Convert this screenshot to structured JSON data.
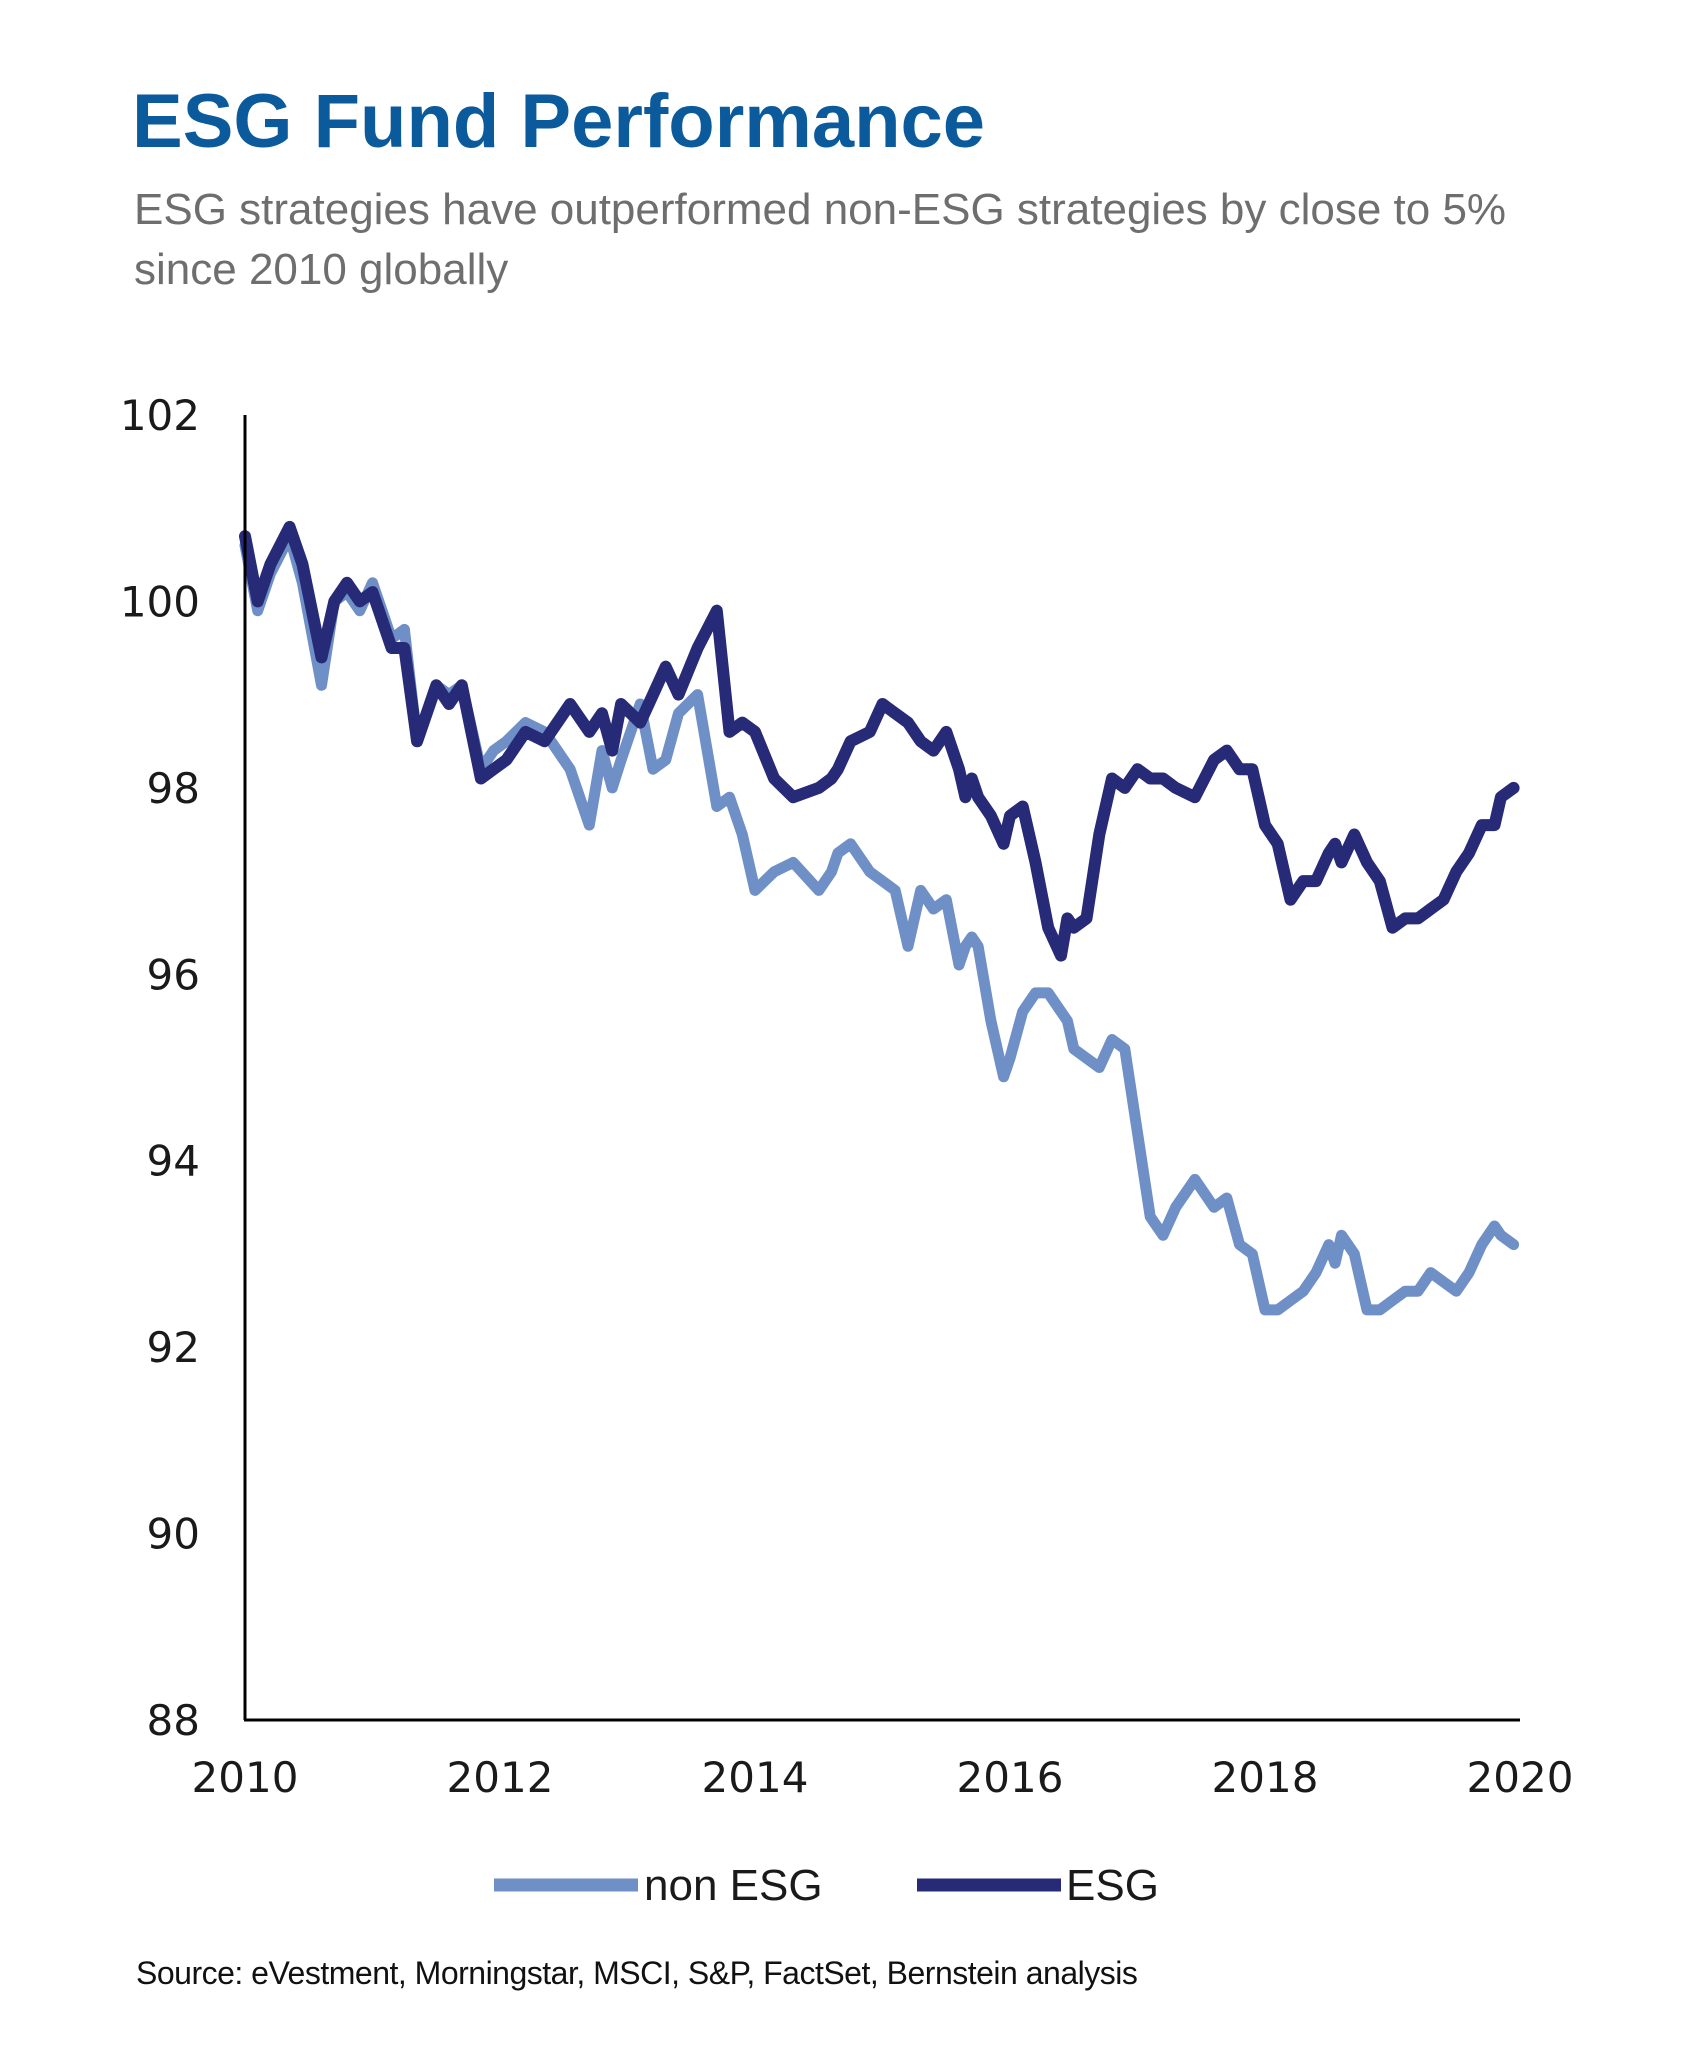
{
  "title": "ESG Fund Performance",
  "subtitle": "ESG strategies have outperformed non-ESG strategies by close to 5% since 2010 globally",
  "source": "Source: eVestment, Morningstar, MSCI, S&P, FactSet, Bernstein analysis",
  "colors": {
    "title": "#0b5a9c",
    "non_esg": "#6f8fc7",
    "esg": "#262a77"
  },
  "chart_data": {
    "type": "line",
    "xlim": [
      2010,
      2020
    ],
    "ylim": [
      88,
      102
    ],
    "x_ticks": [
      "2010",
      "2012",
      "2014",
      "2016",
      "2018",
      "2020"
    ],
    "y_ticks": [
      "102",
      "100",
      "98",
      "96",
      "94",
      "92",
      "90",
      "88"
    ],
    "grid": false,
    "legend_placement": "bottom-center",
    "series": [
      {
        "name": "non ESG",
        "x": [
          2010.0,
          2010.1,
          2010.2,
          2010.35,
          2010.45,
          2010.6,
          2010.7,
          2010.8,
          2010.9,
          2011.0,
          2011.15,
          2011.25,
          2011.35,
          2011.5,
          2011.6,
          2011.7,
          2011.85,
          2011.95,
          2012.05,
          2012.2,
          2012.35,
          2012.55,
          2012.7,
          2012.8,
          2012.88,
          2012.95,
          2013.1,
          2013.2,
          2013.3,
          2013.4,
          2013.55,
          2013.7,
          2013.8,
          2013.9,
          2014.0,
          2014.15,
          2014.3,
          2014.5,
          2014.6,
          2014.65,
          2014.75,
          2014.9,
          2015.0,
          2015.1,
          2015.2,
          2015.3,
          2015.4,
          2015.5,
          2015.6,
          2015.65,
          2015.7,
          2015.75,
          2015.85,
          2015.95,
          2016.0,
          2016.1,
          2016.2,
          2016.3,
          2016.4,
          2016.45,
          2016.5,
          2016.6,
          2016.7,
          2016.8,
          2016.9,
          2017.0,
          2017.1,
          2017.2,
          2017.3,
          2017.45,
          2017.6,
          2017.7,
          2017.8,
          2017.9,
          2018.0,
          2018.1,
          2018.2,
          2018.3,
          2018.4,
          2018.5,
          2018.55,
          2018.6,
          2018.7,
          2018.8,
          2018.9,
          2019.0,
          2019.1,
          2019.2,
          2019.3,
          2019.4,
          2019.5,
          2019.6,
          2019.7,
          2019.8,
          2019.85,
          2019.95
        ],
        "values": [
          100.6,
          99.9,
          100.3,
          100.7,
          100.2,
          99.1,
          100.0,
          100.1,
          99.9,
          100.2,
          99.6,
          99.7,
          98.5,
          99.1,
          99.0,
          99.1,
          98.2,
          98.4,
          98.5,
          98.7,
          98.6,
          98.2,
          97.6,
          98.4,
          98.0,
          98.3,
          98.9,
          98.2,
          98.3,
          98.8,
          99.0,
          97.8,
          97.9,
          97.5,
          96.9,
          97.1,
          97.2,
          96.9,
          97.1,
          97.3,
          97.4,
          97.1,
          97.0,
          96.9,
          96.3,
          96.9,
          96.7,
          96.8,
          96.1,
          96.3,
          96.4,
          96.3,
          95.5,
          94.9,
          95.1,
          95.6,
          95.8,
          95.8,
          95.6,
          95.5,
          95.2,
          95.1,
          95.0,
          95.3,
          95.2,
          94.3,
          93.4,
          93.2,
          93.5,
          93.8,
          93.5,
          93.6,
          93.1,
          93.0,
          92.4,
          92.4,
          92.5,
          92.6,
          92.8,
          93.1,
          92.9,
          93.2,
          93.0,
          92.4,
          92.4,
          92.5,
          92.6,
          92.6,
          92.8,
          92.7,
          92.6,
          92.8,
          93.1,
          93.3,
          93.2,
          93.1
        ]
      },
      {
        "name": "ESG",
        "x": [
          2010.0,
          2010.1,
          2010.2,
          2010.35,
          2010.45,
          2010.6,
          2010.7,
          2010.8,
          2010.9,
          2011.0,
          2011.15,
          2011.25,
          2011.35,
          2011.5,
          2011.6,
          2011.7,
          2011.85,
          2011.95,
          2012.05,
          2012.2,
          2012.35,
          2012.55,
          2012.7,
          2012.8,
          2012.88,
          2012.95,
          2013.1,
          2013.2,
          2013.3,
          2013.4,
          2013.55,
          2013.7,
          2013.8,
          2013.9,
          2014.0,
          2014.15,
          2014.3,
          2014.5,
          2014.6,
          2014.65,
          2014.75,
          2014.9,
          2015.0,
          2015.1,
          2015.2,
          2015.3,
          2015.4,
          2015.5,
          2015.6,
          2015.65,
          2015.7,
          2015.75,
          2015.85,
          2015.95,
          2016.0,
          2016.1,
          2016.2,
          2016.3,
          2016.4,
          2016.45,
          2016.5,
          2016.6,
          2016.7,
          2016.8,
          2016.9,
          2017.0,
          2017.1,
          2017.2,
          2017.3,
          2017.45,
          2017.6,
          2017.7,
          2017.8,
          2017.9,
          2018.0,
          2018.1,
          2018.2,
          2018.3,
          2018.4,
          2018.5,
          2018.55,
          2018.6,
          2018.7,
          2018.8,
          2018.9,
          2019.0,
          2019.1,
          2019.2,
          2019.3,
          2019.4,
          2019.5,
          2019.6,
          2019.7,
          2019.8,
          2019.85,
          2019.95
        ],
        "values": [
          100.7,
          100.0,
          100.4,
          100.8,
          100.4,
          99.4,
          100.0,
          100.2,
          100.0,
          100.1,
          99.5,
          99.5,
          98.5,
          99.1,
          98.9,
          99.1,
          98.1,
          98.2,
          98.3,
          98.6,
          98.5,
          98.9,
          98.6,
          98.8,
          98.4,
          98.9,
          98.7,
          99.0,
          99.3,
          99.0,
          99.5,
          99.9,
          98.6,
          98.7,
          98.6,
          98.1,
          97.9,
          98.0,
          98.1,
          98.2,
          98.5,
          98.6,
          98.9,
          98.8,
          98.7,
          98.5,
          98.4,
          98.6,
          98.2,
          97.9,
          98.1,
          97.9,
          97.7,
          97.4,
          97.7,
          97.8,
          97.2,
          96.5,
          96.2,
          96.6,
          96.5,
          96.6,
          97.5,
          98.1,
          98.0,
          98.2,
          98.1,
          98.1,
          98.0,
          97.9,
          98.3,
          98.4,
          98.2,
          98.2,
          97.6,
          97.4,
          96.8,
          97.0,
          97.0,
          97.3,
          97.4,
          97.2,
          97.5,
          97.2,
          97.0,
          96.5,
          96.6,
          96.6,
          96.7,
          96.8,
          97.1,
          97.3,
          97.6,
          97.6,
          97.9,
          98.0
        ]
      }
    ]
  }
}
